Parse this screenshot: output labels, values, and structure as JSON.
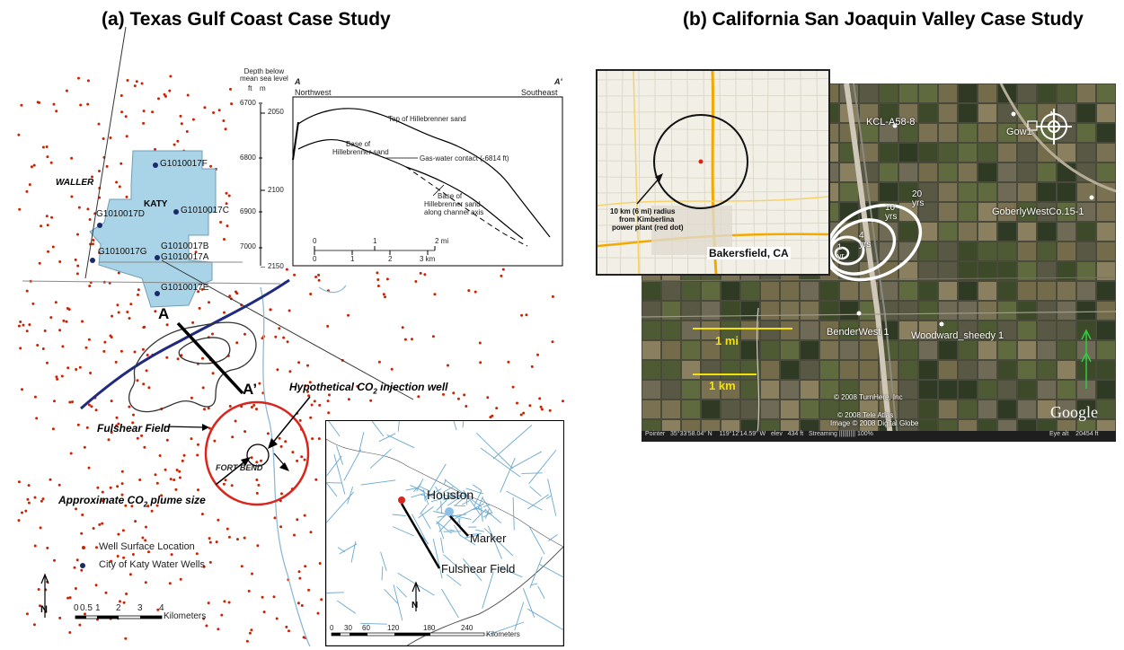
{
  "panel_a": {
    "title": "(a) Texas Gulf Coast Case Study",
    "county_labels": {
      "waller": "WALLER",
      "katy": "KATY",
      "fort_bend": "FORT BEND"
    },
    "wells": [
      "G1010017F",
      "G1010017D",
      "G1010017C",
      "G1010017G",
      "G1010017B",
      "G1010017A",
      "G1010017E"
    ],
    "section_ends": {
      "start": "A",
      "end": "A’"
    },
    "annotations": {
      "injection_well_prefix": "Hypothetical CO",
      "injection_well_sub": "2",
      "injection_well_suffix": " injection well",
      "plume_prefix": "Approximate CO",
      "plume_sub": "2",
      "plume_suffix": " plume size",
      "field": "Fulshear Field"
    },
    "legend": {
      "well_surface": "Well Surface Location",
      "katy_wells": "City of Katy Water Wells"
    },
    "scale": {
      "ticks": [
        "0",
        "0.5",
        "1",
        "2",
        "3",
        "4"
      ],
      "unit": "Kilometers"
    },
    "cross_section": {
      "depth_header": "Depth below\nmean sea level",
      "unit_ft": "ft",
      "unit_m": "m",
      "depth_ft": [
        "6700",
        "6800",
        "6900",
        "7000"
      ],
      "depth_m": [
        "2050",
        "2100",
        "2150"
      ],
      "left_end": "A",
      "right_end": "A'",
      "left_dir": "Northwest",
      "right_dir": "Southeast",
      "labels": {
        "top": "Top of Hillebrenner sand",
        "base1": "Base of",
        "base2": "Hillebrenner sand",
        "gwc": "Gas-water contact (-6814 ft)",
        "axis1": "Base of",
        "axis2": "Hillebrenner sand",
        "axis3": "along channel axis"
      },
      "scale_mi": [
        "0",
        "1",
        "2 mi"
      ],
      "scale_km": [
        "0",
        "1",
        "2",
        "3 km"
      ]
    },
    "inset": {
      "city": "Houston",
      "marker": "Marker",
      "field": "Fulshear Field",
      "scale": [
        "0",
        "30",
        "60",
        "120",
        "180",
        "240"
      ],
      "unit": "Kilometers"
    },
    "colors": {
      "wells": "#cc2200",
      "katy_wells": "#1a2a6c",
      "katy_area": "#a9d3e6",
      "fault": "#1f2a80",
      "plume": "#d9251c"
    }
  },
  "panel_b": {
    "title": "(b) California San Joaquin Valley Case Study",
    "wells": {
      "kcl": "KCL-A58-8",
      "gow": "Gow1",
      "goberly": "GoberlyWestCo.15-1",
      "bender": "BenderWest 1",
      "woodward": "Woodward_sheedy 1"
    },
    "plume_years": [
      {
        "n": "20",
        "u": "yrs"
      },
      {
        "n": "10",
        "u": "yrs"
      },
      {
        "n": "4",
        "u": "yrs"
      },
      {
        "n": "1",
        "u": "yr"
      }
    ],
    "scale": {
      "mi": "1 mi",
      "km": "1 km"
    },
    "credits": {
      "turnhere": "© 2008 TurnHere, Inc",
      "tele_atlas": "© 2008 Tele Atlas",
      "digital_globe": "Image © 2008 Digital Globe"
    },
    "status_bar": {
      "pointer": "Pointer   35°33'58.04\" N    119°12'14.59\" W   elev   434 ft   Streaming |||||||||| 100%",
      "eye": "Eye alt    20454 ft"
    },
    "google": "Google",
    "inset": {
      "city": "Bakersfield, CA",
      "note1": "10 km (6 mi) radius",
      "note2": "from Kimberlina",
      "note3": "power plant (red dot)"
    },
    "colors": {
      "scale": "#f5e10a",
      "compass": "#ffffff",
      "plume": "#ffffff"
    }
  }
}
